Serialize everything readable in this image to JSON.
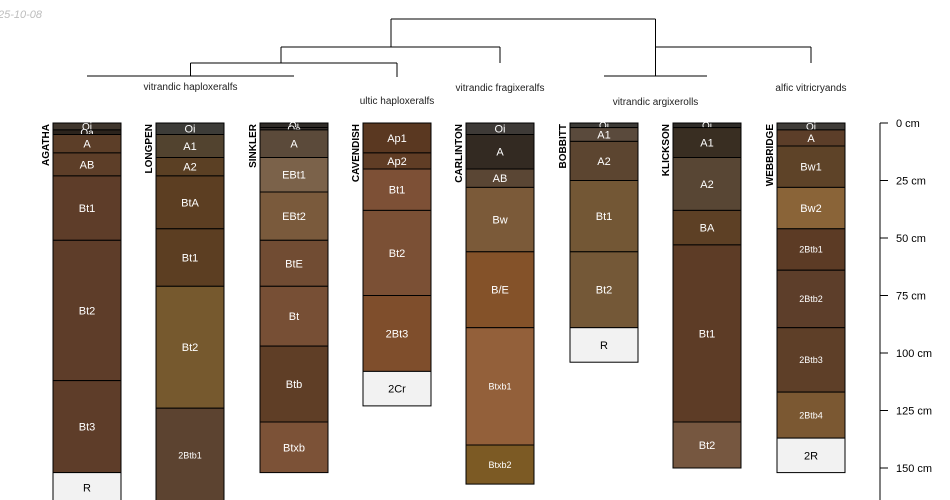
{
  "date_stamp": "25-10-08",
  "colors": {
    "white_layer": "#f2f2f2",
    "outline": "#000000"
  },
  "depth_axis": {
    "unit": "cm",
    "max": 160,
    "ticks": [
      {
        "value": 0,
        "label": "0 cm"
      },
      {
        "value": 25,
        "label": "25 cm"
      },
      {
        "value": 50,
        "label": "50 cm"
      },
      {
        "value": 75,
        "label": "75 cm"
      },
      {
        "value": 100,
        "label": "100 cm"
      },
      {
        "value": 125,
        "label": "125 cm"
      },
      {
        "value": 150,
        "label": "150 cm"
      }
    ]
  },
  "taxa": [
    {
      "label": "vitrandic haploxeralfs",
      "profiles": [
        "AGATHA",
        "LONGPEN",
        "SINKLER"
      ]
    },
    {
      "label": "ultic haploxeralfs",
      "profiles": [
        "CAVENDISH"
      ]
    },
    {
      "label": "vitrandic fragixeralfs",
      "profiles": [
        "CARLINTON"
      ]
    },
    {
      "label": "vitrandic argixerolls",
      "profiles": [
        "BOBBITT",
        "KLICKSON"
      ]
    },
    {
      "label": "alfic vitricryands",
      "profiles": [
        "WEBBRIDGE"
      ]
    }
  ],
  "profiles": [
    {
      "name": "AGATHA",
      "horizons": [
        {
          "name": "Oi",
          "top": 0,
          "bottom": 3,
          "color": "#3f362d"
        },
        {
          "name": "Oa",
          "top": 3,
          "bottom": 5,
          "color": "#2b231c"
        },
        {
          "name": "A",
          "top": 5,
          "bottom": 13,
          "color": "#5c3e28"
        },
        {
          "name": "AB",
          "top": 13,
          "bottom": 23,
          "color": "#5d3e28"
        },
        {
          "name": "Bt1",
          "top": 23,
          "bottom": 51,
          "color": "#5e3d29"
        },
        {
          "name": "Bt2",
          "top": 51,
          "bottom": 112,
          "color": "#5e3d29"
        },
        {
          "name": "Bt3",
          "top": 112,
          "bottom": 152,
          "color": "#5e3d29"
        },
        {
          "name": "R",
          "top": 152,
          "bottom": 165,
          "color": "#f2f2f2"
        }
      ]
    },
    {
      "name": "LONGPEN",
      "horizons": [
        {
          "name": "Oi",
          "top": 0,
          "bottom": 5,
          "color": "#3d3c38"
        },
        {
          "name": "A1",
          "top": 5,
          "bottom": 15,
          "color": "#52432f"
        },
        {
          "name": "A2",
          "top": 15,
          "bottom": 23,
          "color": "#5b4024"
        },
        {
          "name": "BtA",
          "top": 23,
          "bottom": 46,
          "color": "#5c3e22"
        },
        {
          "name": "Bt1",
          "top": 46,
          "bottom": 71,
          "color": "#5c3e22"
        },
        {
          "name": "Bt2",
          "top": 71,
          "bottom": 124,
          "color": "#76592e"
        },
        {
          "name": "2Btb1",
          "top": 124,
          "bottom": 165,
          "color": "#5c4330"
        }
      ]
    },
    {
      "name": "SINKLER",
      "horizons": [
        {
          "name": "Oi",
          "top": 0,
          "bottom": 2,
          "color": "#2f2b27"
        },
        {
          "name": "Oe",
          "top": 2,
          "bottom": 3,
          "color": "#3b3430"
        },
        {
          "name": "A",
          "top": 3,
          "bottom": 15,
          "color": "#5b4a3a"
        },
        {
          "name": "EBt1",
          "top": 15,
          "bottom": 30,
          "color": "#7b624a"
        },
        {
          "name": "EBt2",
          "top": 30,
          "bottom": 51,
          "color": "#7a5a3c"
        },
        {
          "name": "BtE",
          "top": 51,
          "bottom": 71,
          "color": "#714c33"
        },
        {
          "name": "Bt",
          "top": 71,
          "bottom": 97,
          "color": "#774f35"
        },
        {
          "name": "Btb",
          "top": 97,
          "bottom": 130,
          "color": "#5f3e26"
        },
        {
          "name": "Btxb",
          "top": 130,
          "bottom": 152,
          "color": "#7c5237"
        }
      ]
    },
    {
      "name": "CAVENDISH",
      "horizons": [
        {
          "name": "Ap1",
          "top": 0,
          "bottom": 13,
          "color": "#5a3821"
        },
        {
          "name": "Ap2",
          "top": 13,
          "bottom": 20,
          "color": "#603d25"
        },
        {
          "name": "Bt1",
          "top": 20,
          "bottom": 38,
          "color": "#7d5036"
        },
        {
          "name": "Bt2",
          "top": 38,
          "bottom": 75,
          "color": "#7b5035"
        },
        {
          "name": "2Bt3",
          "top": 75,
          "bottom": 108,
          "color": "#7f4e2c"
        },
        {
          "name": "2Cr",
          "top": 108,
          "bottom": 123,
          "color": "#f2f2f2"
        }
      ]
    },
    {
      "name": "CARLINTON",
      "horizons": [
        {
          "name": "Oi",
          "top": 0,
          "bottom": 5,
          "color": "#3e3a37"
        },
        {
          "name": "A",
          "top": 5,
          "bottom": 20,
          "color": "#332a22"
        },
        {
          "name": "AB",
          "top": 20,
          "bottom": 28,
          "color": "#5a4634"
        },
        {
          "name": "Bw",
          "top": 28,
          "bottom": 56,
          "color": "#7b5a39"
        },
        {
          "name": "B/E",
          "top": 56,
          "bottom": 89,
          "color": "#845229"
        },
        {
          "name": "Btxb1",
          "top": 89,
          "bottom": 140,
          "color": "#93603a"
        },
        {
          "name": "Btxb2",
          "top": 140,
          "bottom": 157,
          "color": "#7c5a24"
        }
      ]
    },
    {
      "name": "BOBBITT",
      "horizons": [
        {
          "name": "Oi",
          "top": 0,
          "bottom": 2,
          "color": "#3c3a36"
        },
        {
          "name": "A1",
          "top": 2,
          "bottom": 8,
          "color": "#5a4a3c"
        },
        {
          "name": "A2",
          "top": 8,
          "bottom": 25,
          "color": "#5c4530"
        },
        {
          "name": "Bt1",
          "top": 25,
          "bottom": 56,
          "color": "#735735"
        },
        {
          "name": "Bt2",
          "top": 56,
          "bottom": 89,
          "color": "#745837"
        },
        {
          "name": "R",
          "top": 89,
          "bottom": 104,
          "color": "#f2f2f2"
        }
      ]
    },
    {
      "name": "KLICKSON",
      "horizons": [
        {
          "name": "Oi",
          "top": 0,
          "bottom": 2,
          "color": "#2f2c28"
        },
        {
          "name": "A1",
          "top": 2,
          "bottom": 15,
          "color": "#392e22"
        },
        {
          "name": "A2",
          "top": 15,
          "bottom": 38,
          "color": "#584634"
        },
        {
          "name": "BA",
          "top": 38,
          "bottom": 53,
          "color": "#5d4025"
        },
        {
          "name": "Bt1",
          "top": 53,
          "bottom": 130,
          "color": "#5d3c26"
        },
        {
          "name": "Bt2",
          "top": 130,
          "bottom": 150,
          "color": "#765740"
        }
      ]
    },
    {
      "name": "WEBBRIDGE",
      "horizons": [
        {
          "name": "Oi",
          "top": 0,
          "bottom": 3,
          "color": "#3f3c38"
        },
        {
          "name": "A",
          "top": 3,
          "bottom": 10,
          "color": "#5c3e29"
        },
        {
          "name": "Bw1",
          "top": 10,
          "bottom": 28,
          "color": "#5e4328"
        },
        {
          "name": "Bw2",
          "top": 28,
          "bottom": 46,
          "color": "#8a6438"
        },
        {
          "name": "2Btb1",
          "top": 46,
          "bottom": 64,
          "color": "#5c3b25"
        },
        {
          "name": "2Btb2",
          "top": 64,
          "bottom": 89,
          "color": "#5d3e2a"
        },
        {
          "name": "2Btb3",
          "top": 89,
          "bottom": 117,
          "color": "#5e3f28"
        },
        {
          "name": "2Btb4",
          "top": 117,
          "bottom": 137,
          "color": "#7b5832"
        },
        {
          "name": "2R",
          "top": 137,
          "bottom": 152,
          "color": "#f2f2f2"
        }
      ]
    }
  ]
}
